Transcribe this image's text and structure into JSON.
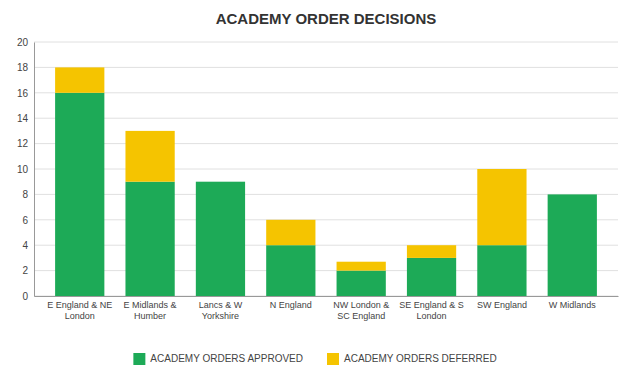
{
  "chart_data": {
    "type": "bar",
    "stacked": true,
    "title": "ACADEMY ORDER DECISIONS",
    "categories": [
      "E England & NE\nLondon",
      "E Midlands &\nHumber",
      "Lancs & W\nYorkshire",
      "N England",
      "NW London &\nSC England",
      "SE England & S\nLondon",
      "SW England",
      "W Midlands"
    ],
    "series": [
      {
        "name": "ACADEMY ORDERS APPROVED",
        "color": "#1daa57",
        "values": [
          16,
          9,
          9,
          4,
          2,
          3,
          4,
          8
        ]
      },
      {
        "name": "ACADEMY ORDERS DEFERRED",
        "color": "#f5c400",
        "values": [
          2,
          4,
          0,
          2,
          0.7,
          1,
          6,
          0
        ]
      }
    ],
    "ylim": [
      0,
      20
    ],
    "yticks": [
      0,
      2,
      4,
      6,
      8,
      10,
      12,
      14,
      16,
      18,
      20
    ],
    "grid": true,
    "legend": "bottom"
  }
}
